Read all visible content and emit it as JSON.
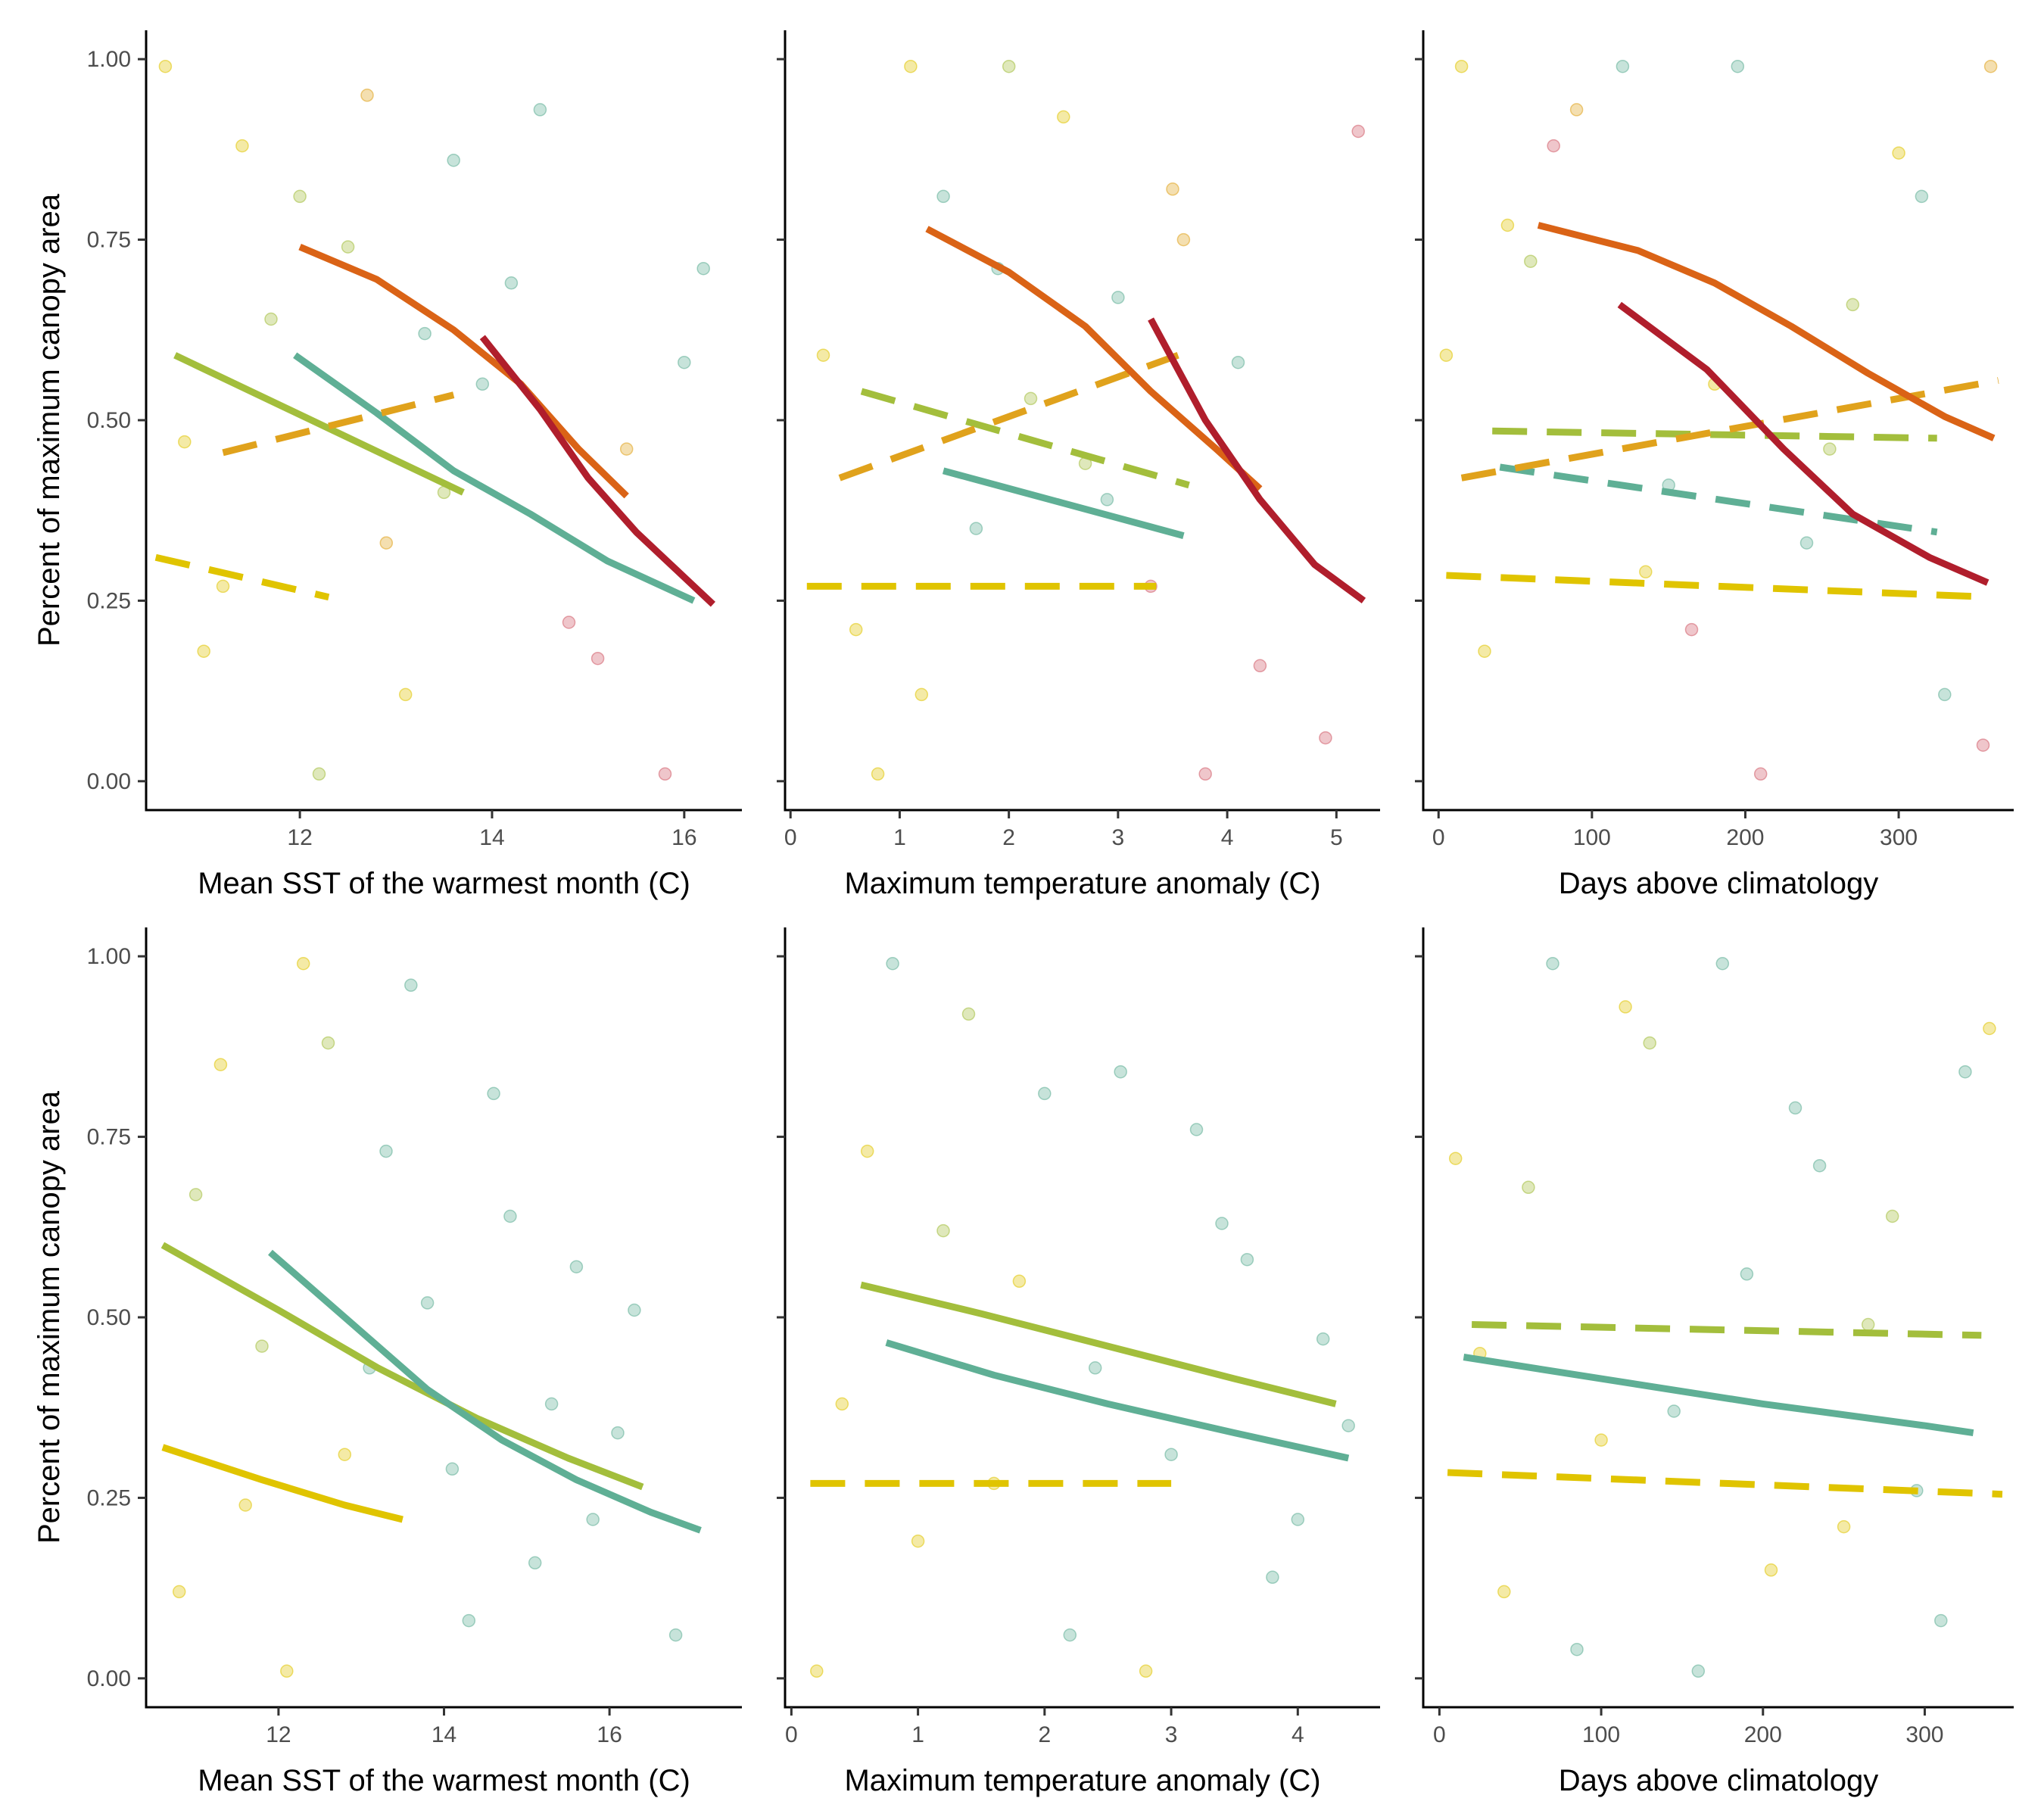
{
  "figure": {
    "colors": {
      "yellow": "#E0C400",
      "lime": "#A3BE3C",
      "teal": "#5FAF95",
      "orange": "#E0A21C",
      "darkorange": "#DA6316",
      "crimson": "#B01E2C",
      "red": "#D25C6A"
    }
  },
  "chart_data": [
    {
      "type": "scatter",
      "panel": "top-left",
      "xlabel": "Mean SST of the warmest month (C)",
      "ylabel": "Percent of maximum canopy area",
      "xlim": [
        10.4,
        16.6
      ],
      "ylim": [
        -0.04,
        1.04
      ],
      "xticks": [
        12,
        14,
        16
      ],
      "yticks": [
        0.0,
        0.25,
        0.5,
        0.75,
        1.0
      ],
      "ytick_labels": [
        "0.00",
        "0.25",
        "0.50",
        "0.75",
        "1.00"
      ],
      "series": [
        {
          "name": "yellow",
          "color": "#E0C400",
          "dashed": true,
          "x": [
            10.5,
            12.3
          ],
          "y": [
            0.31,
            0.255
          ]
        },
        {
          "name": "lime",
          "color": "#A3BE3C",
          "dashed": false,
          "x": [
            10.7,
            13.7
          ],
          "y": [
            0.59,
            0.4
          ]
        },
        {
          "name": "teal",
          "color": "#5FAF95",
          "dashed": false,
          "x": [
            11.95,
            12.8,
            13.6,
            14.4,
            15.2,
            16.1
          ],
          "y": [
            0.59,
            0.51,
            0.43,
            0.37,
            0.305,
            0.25
          ]
        },
        {
          "name": "orange",
          "color": "#E0A21C",
          "dashed": true,
          "x": [
            11.2,
            13.6
          ],
          "y": [
            0.455,
            0.535
          ]
        },
        {
          "name": "darkorange",
          "color": "#DA6316",
          "dashed": false,
          "x": [
            12.0,
            12.8,
            13.6,
            14.3,
            14.9,
            15.4
          ],
          "y": [
            0.74,
            0.695,
            0.625,
            0.55,
            0.46,
            0.395
          ]
        },
        {
          "name": "crimson",
          "color": "#B01E2C",
          "dashed": false,
          "x": [
            13.9,
            14.5,
            15.0,
            15.5,
            16.3
          ],
          "y": [
            0.615,
            0.515,
            0.42,
            0.345,
            0.245
          ]
        }
      ],
      "points": {
        "colors": [
          "#E0C400",
          "#A3BE3C",
          "#5FAF95",
          "#E0A21C",
          "#D25C6A"
        ],
        "x": [
          10.6,
          12.0,
          13.3,
          15.4,
          11.0,
          12.5,
          13.9,
          15.8,
          11.4,
          12.9,
          14.2,
          16.2,
          10.8,
          12.2,
          13.6,
          14.8,
          11.7,
          13.1,
          14.5,
          16.0,
          11.2,
          12.7,
          13.5,
          15.1
        ],
        "y": [
          0.99,
          0.81,
          0.62,
          0.46,
          0.18,
          0.74,
          0.55,
          0.01,
          0.88,
          0.33,
          0.69,
          0.71,
          0.47,
          0.01,
          0.86,
          0.22,
          0.64,
          0.12,
          0.93,
          0.58,
          0.27,
          0.95,
          0.4,
          0.17
        ],
        "c": [
          0,
          1,
          2,
          3,
          0,
          1,
          2,
          4,
          0,
          3,
          2,
          2,
          0,
          1,
          2,
          4,
          1,
          0,
          2,
          2,
          0,
          3,
          1,
          4
        ]
      }
    },
    {
      "type": "scatter",
      "panel": "top-middle",
      "xlabel": "Maximum temperature anomaly (C)",
      "ylabel": "",
      "xlim": [
        -0.05,
        5.4
      ],
      "ylim": [
        -0.04,
        1.04
      ],
      "xticks": [
        0,
        1,
        2,
        3,
        4,
        5
      ],
      "yticks": [
        0.0,
        0.25,
        0.5,
        0.75,
        1.0
      ],
      "ytick_labels": [],
      "series": [
        {
          "name": "yellow",
          "color": "#E0C400",
          "dashed": true,
          "x": [
            0.15,
            3.35
          ],
          "y": [
            0.27,
            0.27
          ]
        },
        {
          "name": "lime",
          "color": "#A3BE3C",
          "dashed": true,
          "x": [
            0.65,
            3.65
          ],
          "y": [
            0.54,
            0.41
          ]
        },
        {
          "name": "teal",
          "color": "#5FAF95",
          "dashed": false,
          "x": [
            1.4,
            2.5,
            3.6
          ],
          "y": [
            0.43,
            0.385,
            0.34
          ]
        },
        {
          "name": "orange",
          "color": "#E0A21C",
          "dashed": true,
          "x": [
            0.45,
            3.55
          ],
          "y": [
            0.42,
            0.59
          ]
        },
        {
          "name": "darkorange",
          "color": "#DA6316",
          "dashed": false,
          "x": [
            1.25,
            2.0,
            2.7,
            3.3,
            3.9,
            4.3
          ],
          "y": [
            0.765,
            0.705,
            0.63,
            0.54,
            0.46,
            0.405
          ]
        },
        {
          "name": "crimson",
          "color": "#B01E2C",
          "dashed": false,
          "x": [
            3.3,
            3.8,
            4.3,
            4.8,
            5.25
          ],
          "y": [
            0.64,
            0.5,
            0.39,
            0.3,
            0.25
          ]
        }
      ],
      "points": {
        "colors": [
          "#E0C400",
          "#A3BE3C",
          "#5FAF95",
          "#E0A21C",
          "#D25C6A"
        ],
        "x": [
          0.3,
          1.1,
          1.9,
          2.7,
          3.5,
          4.3,
          0.6,
          1.4,
          2.2,
          3.0,
          3.8,
          4.9,
          0.8,
          1.7,
          2.5,
          3.3,
          4.1,
          5.2,
          1.2,
          2.0,
          2.9,
          3.6
        ],
        "y": [
          0.59,
          0.99,
          0.71,
          0.44,
          0.82,
          0.16,
          0.21,
          0.81,
          0.53,
          0.67,
          0.01,
          0.06,
          0.01,
          0.35,
          0.92,
          0.27,
          0.58,
          0.9,
          0.12,
          0.99,
          0.39,
          0.75
        ],
        "c": [
          0,
          0,
          2,
          1,
          3,
          4,
          0,
          2,
          1,
          2,
          4,
          4,
          0,
          2,
          0,
          4,
          2,
          4,
          0,
          1,
          2,
          3
        ]
      }
    },
    {
      "type": "scatter",
      "panel": "top-right",
      "xlabel": "Days above climatology",
      "ylabel": "",
      "xlim": [
        -10,
        375
      ],
      "ylim": [
        -0.04,
        1.04
      ],
      "xticks": [
        0,
        100,
        200,
        300
      ],
      "yticks": [
        0.0,
        0.25,
        0.5,
        0.75,
        1.0
      ],
      "ytick_labels": [],
      "series": [
        {
          "name": "yellow",
          "color": "#E0C400",
          "dashed": true,
          "x": [
            5,
            360
          ],
          "y": [
            0.285,
            0.255
          ]
        },
        {
          "name": "lime",
          "color": "#A3BE3C",
          "dashed": true,
          "x": [
            35,
            325
          ],
          "y": [
            0.485,
            0.475
          ]
        },
        {
          "name": "teal",
          "color": "#5FAF95",
          "dashed": true,
          "x": [
            40,
            325
          ],
          "y": [
            0.435,
            0.345
          ]
        },
        {
          "name": "orange",
          "color": "#E0A21C",
          "dashed": true,
          "x": [
            15,
            365
          ],
          "y": [
            0.42,
            0.555
          ]
        },
        {
          "name": "darkorange",
          "color": "#DA6316",
          "dashed": false,
          "x": [
            65,
            130,
            180,
            230,
            280,
            330,
            362
          ],
          "y": [
            0.77,
            0.735,
            0.69,
            0.63,
            0.565,
            0.505,
            0.475
          ]
        },
        {
          "name": "crimson",
          "color": "#B01E2C",
          "dashed": false,
          "x": [
            118,
            175,
            225,
            270,
            320,
            358
          ],
          "y": [
            0.66,
            0.57,
            0.46,
            0.37,
            0.31,
            0.275
          ]
        }
      ],
      "points": {
        "colors": [
          "#E0C400",
          "#A3BE3C",
          "#5FAF95",
          "#E0A21C",
          "#D25C6A"
        ],
        "x": [
          5,
          60,
          120,
          180,
          240,
          300,
          355,
          30,
          90,
          150,
          210,
          270,
          330,
          15,
          75,
          135,
          195,
          255,
          315,
          360,
          45,
          165
        ],
        "y": [
          0.59,
          0.72,
          0.99,
          0.55,
          0.33,
          0.87,
          0.05,
          0.18,
          0.93,
          0.41,
          0.01,
          0.66,
          0.12,
          0.99,
          0.88,
          0.29,
          0.99,
          0.46,
          0.81,
          0.99,
          0.77,
          0.21
        ],
        "c": [
          0,
          1,
          2,
          0,
          2,
          0,
          4,
          0,
          3,
          2,
          4,
          1,
          2,
          0,
          4,
          0,
          2,
          1,
          2,
          3,
          0,
          4
        ]
      }
    },
    {
      "type": "scatter",
      "panel": "bottom-left",
      "xlabel": "Mean SST of the warmest month (C)",
      "ylabel": "Percent of maximum canopy area",
      "xlim": [
        10.4,
        17.6
      ],
      "ylim": [
        -0.04,
        1.04
      ],
      "xticks": [
        12,
        14,
        16
      ],
      "yticks": [
        0.0,
        0.25,
        0.5,
        0.75,
        1.0
      ],
      "ytick_labels": [
        "0.00",
        "0.25",
        "0.50",
        "0.75",
        "1.00"
      ],
      "series": [
        {
          "name": "yellow",
          "color": "#E0C400",
          "dashed": false,
          "x": [
            10.6,
            11.8,
            12.8,
            13.5
          ],
          "y": [
            0.32,
            0.275,
            0.24,
            0.22
          ]
        },
        {
          "name": "lime",
          "color": "#A3BE3C",
          "dashed": false,
          "x": [
            10.6,
            12.0,
            13.2,
            14.4,
            15.5,
            16.4
          ],
          "y": [
            0.6,
            0.51,
            0.43,
            0.36,
            0.305,
            0.265
          ]
        },
        {
          "name": "teal",
          "color": "#5FAF95",
          "dashed": false,
          "x": [
            11.9,
            12.9,
            13.8,
            14.7,
            15.6,
            16.5,
            17.1
          ],
          "y": [
            0.59,
            0.49,
            0.4,
            0.33,
            0.275,
            0.23,
            0.205
          ]
        }
      ],
      "points": {
        "colors": [
          "#E0C400",
          "#A3BE3C",
          "#5FAF95"
        ],
        "x": [
          10.8,
          11.3,
          11.8,
          12.3,
          12.8,
          13.3,
          13.8,
          14.3,
          14.8,
          15.3,
          15.8,
          16.3,
          16.8,
          11.0,
          11.6,
          12.1,
          12.6,
          13.1,
          13.6,
          14.1,
          14.6,
          15.1,
          15.6,
          16.1
        ],
        "y": [
          0.12,
          0.85,
          0.46,
          0.99,
          0.31,
          0.73,
          0.52,
          0.08,
          0.64,
          0.38,
          0.22,
          0.51,
          0.06,
          0.67,
          0.24,
          0.01,
          0.88,
          0.43,
          0.96,
          0.29,
          0.81,
          0.16,
          0.57,
          0.34
        ],
        "c": [
          0,
          0,
          1,
          0,
          0,
          2,
          2,
          2,
          2,
          2,
          2,
          2,
          2,
          1,
          0,
          0,
          1,
          2,
          2,
          2,
          2,
          2,
          2,
          2
        ]
      }
    },
    {
      "type": "scatter",
      "panel": "bottom-middle",
      "xlabel": "Maximum temperature anomaly (C)",
      "ylabel": "",
      "xlim": [
        -0.05,
        4.65
      ],
      "ylim": [
        -0.04,
        1.04
      ],
      "xticks": [
        0,
        1,
        2,
        3,
        4
      ],
      "yticks": [
        0.0,
        0.25,
        0.5,
        0.75,
        1.0
      ],
      "ytick_labels": [],
      "series": [
        {
          "name": "yellow",
          "color": "#E0C400",
          "dashed": true,
          "x": [
            0.15,
            3.0
          ],
          "y": [
            0.27,
            0.27
          ]
        },
        {
          "name": "lime",
          "color": "#A3BE3C",
          "dashed": false,
          "x": [
            0.55,
            1.5,
            2.5,
            3.5,
            4.3
          ],
          "y": [
            0.545,
            0.505,
            0.46,
            0.415,
            0.38
          ]
        },
        {
          "name": "teal",
          "color": "#5FAF95",
          "dashed": false,
          "x": [
            0.75,
            1.6,
            2.5,
            3.5,
            4.4
          ],
          "y": [
            0.465,
            0.42,
            0.38,
            0.34,
            0.305
          ]
        }
      ],
      "points": {
        "colors": [
          "#E0C400",
          "#A3BE3C",
          "#5FAF95"
        ],
        "x": [
          0.2,
          0.6,
          1.0,
          1.4,
          1.8,
          2.2,
          2.6,
          3.0,
          3.4,
          3.8,
          4.2,
          0.4,
          0.8,
          1.2,
          1.6,
          2.0,
          2.4,
          2.8,
          3.2,
          3.6,
          4.0,
          4.4
        ],
        "y": [
          0.01,
          0.73,
          0.19,
          0.92,
          0.55,
          0.06,
          0.84,
          0.31,
          0.63,
          0.14,
          0.47,
          0.38,
          0.99,
          0.62,
          0.27,
          0.81,
          0.43,
          0.01,
          0.76,
          0.58,
          0.22,
          0.35
        ],
        "c": [
          0,
          0,
          0,
          1,
          0,
          2,
          2,
          2,
          2,
          2,
          2,
          0,
          2,
          1,
          0,
          2,
          2,
          0,
          2,
          2,
          2,
          2
        ]
      }
    },
    {
      "type": "scatter",
      "panel": "bottom-right",
      "xlabel": "Days above climatology",
      "ylabel": "",
      "xlim": [
        -10,
        355
      ],
      "ylim": [
        -0.04,
        1.04
      ],
      "xticks": [
        0,
        100,
        200,
        300
      ],
      "yticks": [
        0.0,
        0.25,
        0.5,
        0.75,
        1.0
      ],
      "ytick_labels": [],
      "series": [
        {
          "name": "yellow",
          "color": "#E0C400",
          "dashed": true,
          "x": [
            5,
            348
          ],
          "y": [
            0.285,
            0.255
          ]
        },
        {
          "name": "lime",
          "color": "#A3BE3C",
          "dashed": true,
          "x": [
            20,
            335
          ],
          "y": [
            0.49,
            0.475
          ]
        },
        {
          "name": "teal",
          "color": "#5FAF95",
          "dashed": false,
          "x": [
            15,
            100,
            200,
            300,
            330
          ],
          "y": [
            0.445,
            0.415,
            0.38,
            0.35,
            0.34
          ]
        }
      ],
      "points": {
        "colors": [
          "#E0C400",
          "#A3BE3C",
          "#5FAF95"
        ],
        "x": [
          10,
          40,
          70,
          100,
          130,
          160,
          190,
          220,
          250,
          280,
          310,
          340,
          25,
          55,
          85,
          115,
          145,
          175,
          205,
          235,
          265,
          295,
          325
        ],
        "y": [
          0.72,
          0.12,
          0.99,
          0.33,
          0.88,
          0.01,
          0.56,
          0.79,
          0.21,
          0.64,
          0.08,
          0.9,
          0.45,
          0.68,
          0.04,
          0.93,
          0.37,
          0.99,
          0.15,
          0.71,
          0.49,
          0.26,
          0.84
        ],
        "c": [
          0,
          0,
          2,
          0,
          1,
          2,
          2,
          2,
          0,
          1,
          2,
          0,
          0,
          1,
          2,
          0,
          2,
          2,
          0,
          2,
          1,
          2,
          2
        ]
      }
    }
  ]
}
